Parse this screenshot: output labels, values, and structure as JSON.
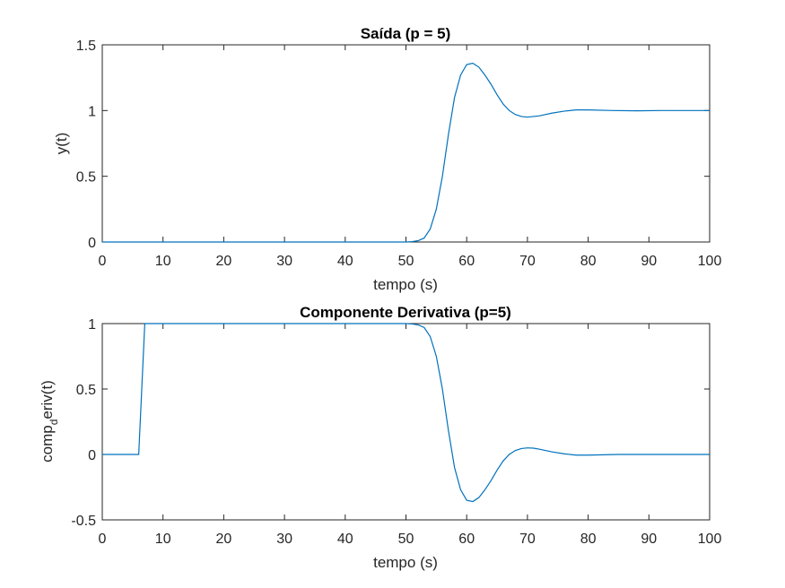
{
  "chart_data": [
    {
      "type": "line",
      "title": "Saída (p = 5)",
      "xlabel": "tempo (s)",
      "ylabel": "y(t)",
      "xlim": [
        0,
        100
      ],
      "ylim": [
        0,
        1.5
      ],
      "xticks": [
        "0",
        "10",
        "20",
        "30",
        "40",
        "50",
        "60",
        "70",
        "80",
        "90",
        "100"
      ],
      "yticks": [
        "0",
        "0.5",
        "1",
        "1.5"
      ],
      "grid": false,
      "color": "#0072BD",
      "x": [
        0,
        10,
        20,
        30,
        40,
        50,
        51,
        52,
        53,
        54,
        55,
        56,
        57,
        58,
        59,
        60,
        61,
        62,
        63,
        64,
        65,
        66,
        67,
        68,
        69,
        70,
        72,
        74,
        76,
        78,
        80,
        84,
        88,
        92,
        96,
        100
      ],
      "y": [
        0,
        0,
        0,
        0,
        0,
        0,
        0.003,
        0.01,
        0.03,
        0.1,
        0.25,
        0.5,
        0.82,
        1.1,
        1.27,
        1.35,
        1.36,
        1.33,
        1.27,
        1.2,
        1.12,
        1.05,
        1.0,
        0.97,
        0.955,
        0.95,
        0.96,
        0.98,
        0.995,
        1.005,
        1.005,
        1.0,
        0.998,
        1.0,
        1.0,
        1.0
      ]
    },
    {
      "type": "line",
      "title": "Componente Derivativa (p=5)",
      "xlabel": "tempo (s)",
      "ylabel_main": "comp",
      "ylabel_sub": "d",
      "ylabel_rest": "eriv(t)",
      "xlim": [
        0,
        100
      ],
      "ylim": [
        -0.5,
        1
      ],
      "xticks": [
        "0",
        "10",
        "20",
        "30",
        "40",
        "50",
        "60",
        "70",
        "80",
        "90",
        "100"
      ],
      "yticks": [
        "-0.5",
        "0",
        "0.5",
        "1"
      ],
      "grid": false,
      "color": "#0072BD",
      "x": [
        0,
        6,
        7,
        10,
        20,
        30,
        40,
        50,
        51,
        52,
        53,
        54,
        55,
        56,
        57,
        58,
        59,
        60,
        61,
        62,
        63,
        64,
        65,
        66,
        67,
        68,
        69,
        70,
        71,
        72,
        74,
        76,
        78,
        80,
        85,
        90,
        95,
        100
      ],
      "y": [
        0,
        0,
        1,
        1,
        1,
        1,
        1,
        1,
        0.997,
        0.99,
        0.97,
        0.9,
        0.75,
        0.5,
        0.18,
        -0.1,
        -0.27,
        -0.35,
        -0.36,
        -0.33,
        -0.27,
        -0.2,
        -0.12,
        -0.05,
        0.0,
        0.03,
        0.045,
        0.05,
        0.048,
        0.04,
        0.02,
        0.005,
        -0.005,
        -0.005,
        0.0,
        0.0,
        0.0,
        0.0
      ]
    }
  ]
}
